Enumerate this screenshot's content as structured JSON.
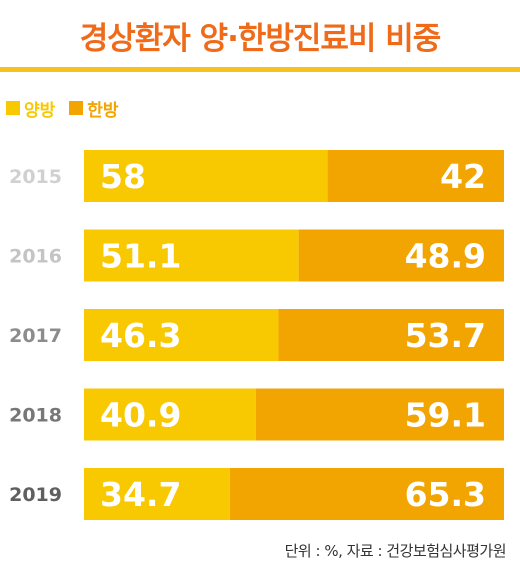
{
  "title": "경상환자 양·한방진료비 비중",
  "legend": [
    {
      "label": "양방",
      "color": "#f8c800"
    },
    {
      "label": "한방",
      "color": "#f2a500"
    }
  ],
  "source": "단위 : %, 자료 : 건강보험심사평가원",
  "colors": {
    "title": "#ef6b1a",
    "title_rule": "#f7c31a",
    "western": "#f8c800",
    "korean": "#f2a500",
    "year_text": [
      "#d0d0d0",
      "#c4c4c4",
      "#8c8c8c",
      "#777777",
      "#5f5f5f"
    ],
    "bar_text": "#ffffff"
  },
  "chart_data": {
    "type": "bar",
    "orientation": "horizontal",
    "stacked": true,
    "categories": [
      "2015",
      "2016",
      "2017",
      "2018",
      "2019"
    ],
    "series": [
      {
        "name": "양방",
        "values": [
          58,
          51.1,
          46.3,
          40.9,
          34.7
        ]
      },
      {
        "name": "한방",
        "values": [
          42,
          48.9,
          53.7,
          59.1,
          65.3
        ]
      }
    ],
    "value_labels": [
      [
        "58",
        "42"
      ],
      [
        "51.1",
        "48.9"
      ],
      [
        "46.3",
        "53.7"
      ],
      [
        "40.9",
        "59.1"
      ],
      [
        "34.7",
        "65.3"
      ]
    ],
    "xlim": [
      0,
      100
    ],
    "grid": false,
    "legend_position": "top-left"
  }
}
